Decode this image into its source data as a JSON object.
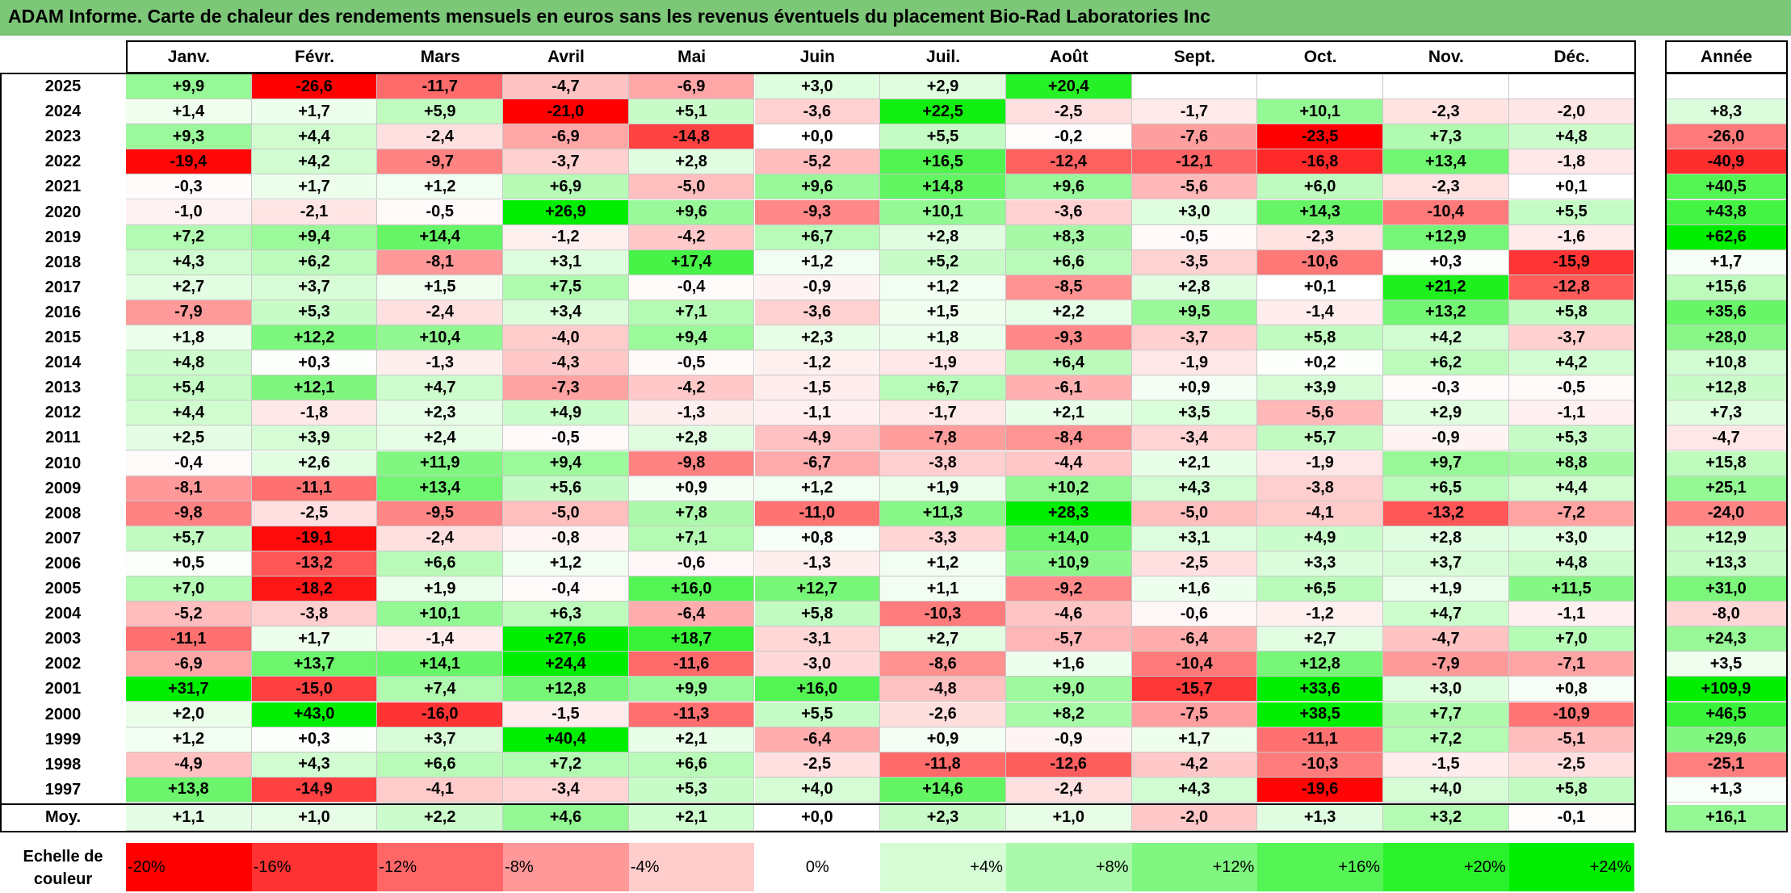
{
  "title": "ADAM Informe. Carte de chaleur des rendements mensuels en euros sans les revenus éventuels du placement Bio-Rad Laboratories Inc",
  "colors": {
    "title_bg": "#7dc779",
    "neg_max": "#ff0000",
    "neutral": "#ffffff",
    "pos_max": "#00ee00"
  },
  "chart_data": {
    "type": "heatmap",
    "title": "ADAM Informe. Carte de chaleur des rendements mensuels en euros sans les revenus éventuels du placement Bio-Rad Laboratories Inc",
    "months": [
      "Janv.",
      "Févr.",
      "Mars",
      "Avril",
      "Mai",
      "Juin",
      "Juil.",
      "Août",
      "Sept.",
      "Oct.",
      "Nov.",
      "Déc."
    ],
    "year_header": "Année",
    "rows": [
      {
        "year": "2025",
        "m": [
          "+9,9",
          "-26,6",
          "-11,7",
          "-4,7",
          "-6,9",
          "+3,0",
          "+2,9",
          "+20,4",
          "",
          "",
          "",
          ""
        ],
        "y": ""
      },
      {
        "year": "2024",
        "m": [
          "+1,4",
          "+1,7",
          "+5,9",
          "-21,0",
          "+5,1",
          "-3,6",
          "+22,5",
          "-2,5",
          "-1,7",
          "+10,1",
          "-2,3",
          "-2,0"
        ],
        "y": "+8,3"
      },
      {
        "year": "2023",
        "m": [
          "+9,3",
          "+4,4",
          "-2,4",
          "-6,9",
          "-14,8",
          "+0,0",
          "+5,5",
          "-0,2",
          "-7,6",
          "-23,5",
          "+7,3",
          "+4,8"
        ],
        "y": "-26,0"
      },
      {
        "year": "2022",
        "m": [
          "-19,4",
          "+4,2",
          "-9,7",
          "-3,7",
          "+2,8",
          "-5,2",
          "+16,5",
          "-12,4",
          "-12,1",
          "-16,8",
          "+13,4",
          "-1,8"
        ],
        "y": "-40,9"
      },
      {
        "year": "2021",
        "m": [
          "-0,3",
          "+1,7",
          "+1,2",
          "+6,9",
          "-5,0",
          "+9,6",
          "+14,8",
          "+9,6",
          "-5,6",
          "+6,0",
          "-2,3",
          "+0,1"
        ],
        "y": "+40,5"
      },
      {
        "year": "2020",
        "m": [
          "-1,0",
          "-2,1",
          "-0,5",
          "+26,9",
          "+9,6",
          "-9,3",
          "+10,1",
          "-3,6",
          "+3,0",
          "+14,3",
          "-10,4",
          "+5,5"
        ],
        "y": "+43,8"
      },
      {
        "year": "2019",
        "m": [
          "+7,2",
          "+9,4",
          "+14,4",
          "-1,2",
          "-4,2",
          "+6,7",
          "+2,8",
          "+8,3",
          "-0,5",
          "-2,3",
          "+12,9",
          "-1,6"
        ],
        "y": "+62,6"
      },
      {
        "year": "2018",
        "m": [
          "+4,3",
          "+6,2",
          "-8,1",
          "+3,1",
          "+17,4",
          "+1,2",
          "+5,2",
          "+6,6",
          "-3,5",
          "-10,6",
          "+0,3",
          "-15,9"
        ],
        "y": "+1,7"
      },
      {
        "year": "2017",
        "m": [
          "+2,7",
          "+3,7",
          "+1,5",
          "+7,5",
          "-0,4",
          "-0,9",
          "+1,2",
          "-8,5",
          "+2,8",
          "+0,1",
          "+21,2",
          "-12,8"
        ],
        "y": "+15,6"
      },
      {
        "year": "2016",
        "m": [
          "-7,9",
          "+5,3",
          "-2,4",
          "+3,4",
          "+7,1",
          "-3,6",
          "+1,5",
          "+2,2",
          "+9,5",
          "-1,4",
          "+13,2",
          "+5,8"
        ],
        "y": "+35,6"
      },
      {
        "year": "2015",
        "m": [
          "+1,8",
          "+12,2",
          "+10,4",
          "-4,0",
          "+9,4",
          "+2,3",
          "+1,8",
          "-9,3",
          "-3,7",
          "+5,8",
          "+4,2",
          "-3,7"
        ],
        "y": "+28,0"
      },
      {
        "year": "2014",
        "m": [
          "+4,8",
          "+0,3",
          "-1,3",
          "-4,3",
          "-0,5",
          "-1,2",
          "-1,9",
          "+6,4",
          "-1,9",
          "+0,2",
          "+6,2",
          "+4,2"
        ],
        "y": "+10,8"
      },
      {
        "year": "2013",
        "m": [
          "+5,4",
          "+12,1",
          "+4,7",
          "-7,3",
          "-4,2",
          "-1,5",
          "+6,7",
          "-6,1",
          "+0,9",
          "+3,9",
          "-0,3",
          "-0,5"
        ],
        "y": "+12,8"
      },
      {
        "year": "2012",
        "m": [
          "+4,4",
          "-1,8",
          "+2,3",
          "+4,9",
          "-1,3",
          "-1,1",
          "-1,7",
          "+2,1",
          "+3,5",
          "-5,6",
          "+2,9",
          "-1,1"
        ],
        "y": "+7,3"
      },
      {
        "year": "2011",
        "m": [
          "+2,5",
          "+3,9",
          "+2,4",
          "-0,5",
          "+2,8",
          "-4,9",
          "-7,8",
          "-8,4",
          "-3,4",
          "+5,7",
          "-0,9",
          "+5,3"
        ],
        "y": "-4,7"
      },
      {
        "year": "2010",
        "m": [
          "-0,4",
          "+2,6",
          "+11,9",
          "+9,4",
          "-9,8",
          "-6,7",
          "-3,8",
          "-4,4",
          "+2,1",
          "-1,9",
          "+9,7",
          "+8,8"
        ],
        "y": "+15,8"
      },
      {
        "year": "2009",
        "m": [
          "-8,1",
          "-11,1",
          "+13,4",
          "+5,6",
          "+0,9",
          "+1,2",
          "+1,9",
          "+10,2",
          "+4,3",
          "-3,8",
          "+6,5",
          "+4,4"
        ],
        "y": "+25,1"
      },
      {
        "year": "2008",
        "m": [
          "-9,8",
          "-2,5",
          "-9,5",
          "-5,0",
          "+7,8",
          "-11,0",
          "+11,3",
          "+28,3",
          "-5,0",
          "-4,1",
          "-13,2",
          "-7,2"
        ],
        "y": "-24,0"
      },
      {
        "year": "2007",
        "m": [
          "+5,7",
          "-19,1",
          "-2,4",
          "-0,8",
          "+7,1",
          "+0,8",
          "-3,3",
          "+14,0",
          "+3,1",
          "+4,9",
          "+2,8",
          "+3,0"
        ],
        "y": "+12,9"
      },
      {
        "year": "2006",
        "m": [
          "+0,5",
          "-13,2",
          "+6,6",
          "+1,2",
          "-0,6",
          "-1,3",
          "+1,2",
          "+10,9",
          "-2,5",
          "+3,3",
          "+3,7",
          "+4,8"
        ],
        "y": "+13,3"
      },
      {
        "year": "2005",
        "m": [
          "+7,0",
          "-18,2",
          "+1,9",
          "-0,4",
          "+16,0",
          "+12,7",
          "+1,1",
          "-9,2",
          "+1,6",
          "+6,5",
          "+1,9",
          "+11,5"
        ],
        "y": "+31,0"
      },
      {
        "year": "2004",
        "m": [
          "-5,2",
          "-3,8",
          "+10,1",
          "+6,3",
          "-6,4",
          "+5,8",
          "-10,3",
          "-4,6",
          "-0,6",
          "-1,2",
          "+4,7",
          "-1,1"
        ],
        "y": "-8,0"
      },
      {
        "year": "2003",
        "m": [
          "-11,1",
          "+1,7",
          "-1,4",
          "+27,6",
          "+18,7",
          "-3,1",
          "+2,7",
          "-5,7",
          "-6,4",
          "+2,7",
          "-4,7",
          "+7,0"
        ],
        "y": "+24,3"
      },
      {
        "year": "2002",
        "m": [
          "-6,9",
          "+13,7",
          "+14,1",
          "+24,4",
          "-11,6",
          "-3,0",
          "-8,6",
          "+1,6",
          "-10,4",
          "+12,8",
          "-7,9",
          "-7,1"
        ],
        "y": "+3,5"
      },
      {
        "year": "2001",
        "m": [
          "+31,7",
          "-15,0",
          "+7,4",
          "+12,8",
          "+9,9",
          "+16,0",
          "-4,8",
          "+9,0",
          "-15,7",
          "+33,6",
          "+3,0",
          "+0,8"
        ],
        "y": "+109,9"
      },
      {
        "year": "2000",
        "m": [
          "+2,0",
          "+43,0",
          "-16,0",
          "-1,5",
          "-11,3",
          "+5,5",
          "-2,6",
          "+8,2",
          "-7,5",
          "+38,5",
          "+7,7",
          "-10,9"
        ],
        "y": "+46,5"
      },
      {
        "year": "1999",
        "m": [
          "+1,2",
          "+0,3",
          "+3,7",
          "+40,4",
          "+2,1",
          "-6,4",
          "+0,9",
          "-0,9",
          "+1,7",
          "-11,1",
          "+7,2",
          "-5,1"
        ],
        "y": "+29,6"
      },
      {
        "year": "1998",
        "m": [
          "-4,9",
          "+4,3",
          "+6,6",
          "+7,2",
          "+6,6",
          "-2,5",
          "-11,8",
          "-12,6",
          "-4,2",
          "-10,3",
          "-1,5",
          "-2,5"
        ],
        "y": "-25,1"
      },
      {
        "year": "1997",
        "m": [
          "+13,8",
          "-14,9",
          "-4,1",
          "-3,4",
          "+5,3",
          "+4,0",
          "+14,6",
          "-2,4",
          "+4,3",
          "-19,6",
          "+4,0",
          "+5,8"
        ],
        "y": "+1,3"
      }
    ],
    "average": {
      "label": "Moy.",
      "m": [
        "+1,1",
        "+1,0",
        "+2,2",
        "+4,6",
        "+2,1",
        "+0,0",
        "+2,3",
        "+1,0",
        "-2,0",
        "+1,3",
        "+3,2",
        "-0,1"
      ],
      "y": "+16,1"
    },
    "scale_label": [
      "Echelle de",
      "couleur"
    ],
    "scale": [
      "-20%",
      "-16%",
      "-12%",
      "-8%",
      "-4%",
      "0%",
      "+4%",
      "+8%",
      "+12%",
      "+16%",
      "+20%",
      "+24%"
    ],
    "scale_values": [
      -20,
      -16,
      -12,
      -8,
      -4,
      0,
      4,
      8,
      12,
      16,
      20,
      24
    ],
    "color_range": {
      "min": -20,
      "max": 24
    }
  }
}
